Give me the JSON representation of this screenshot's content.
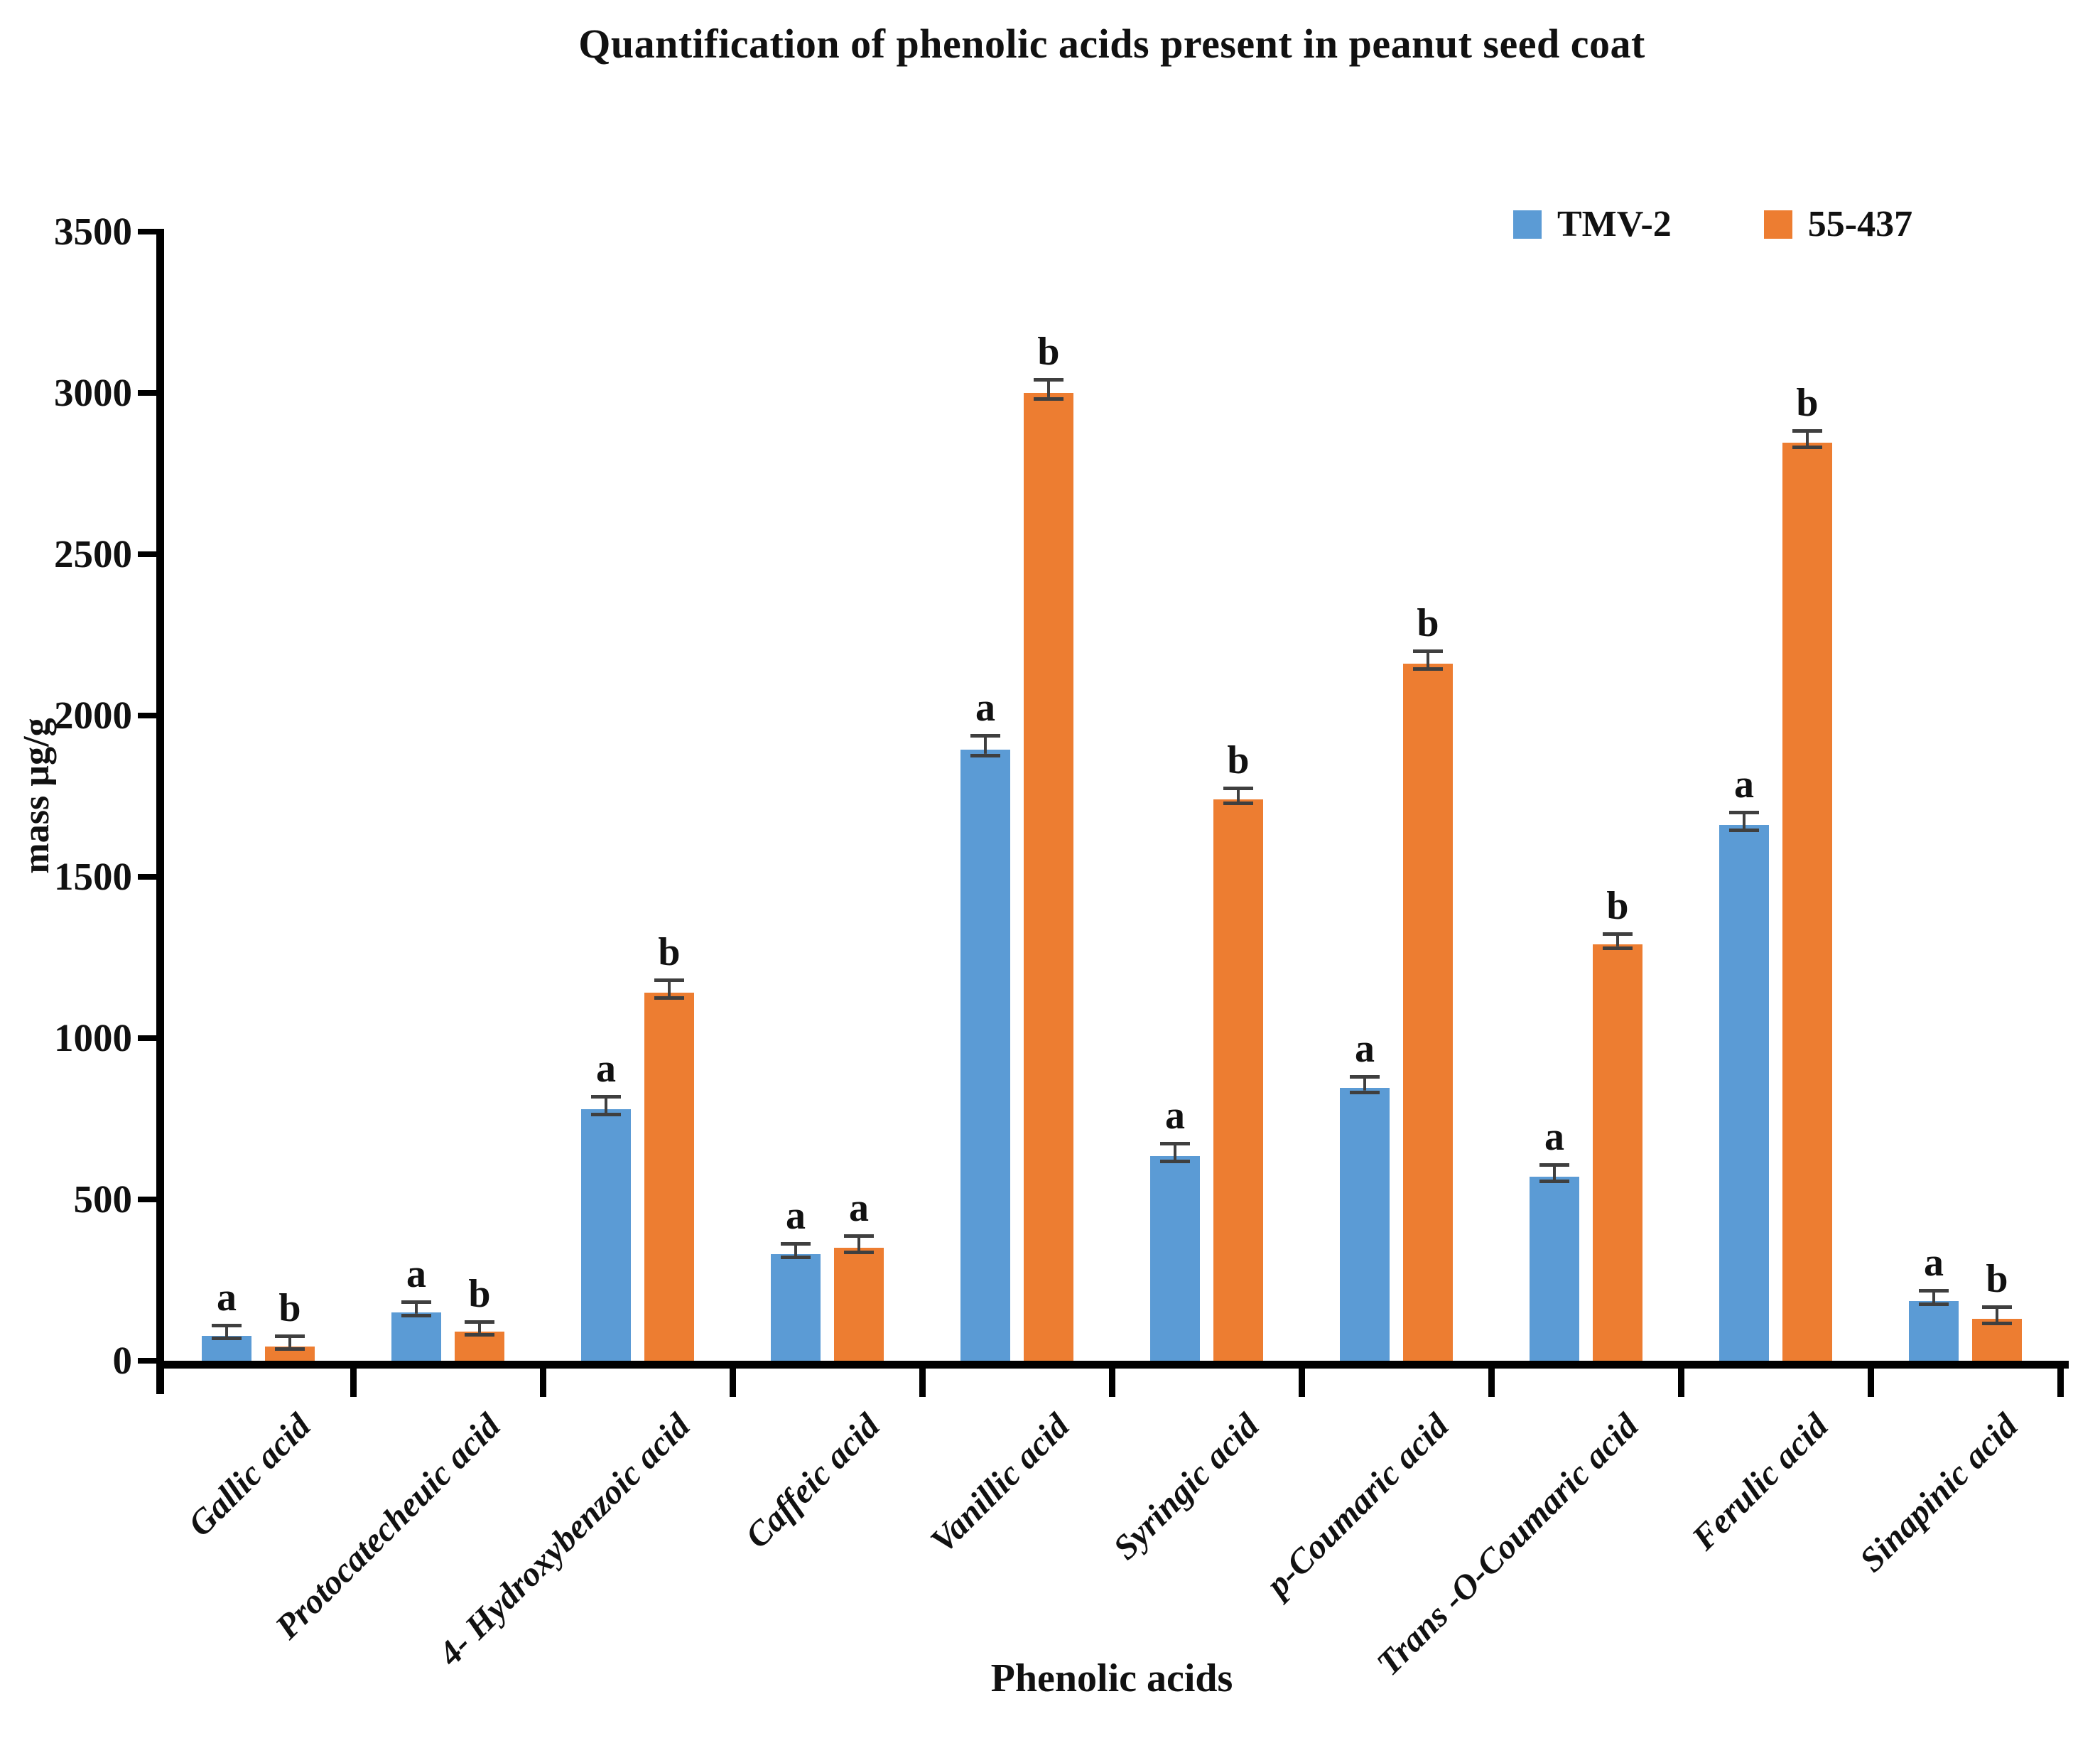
{
  "title": "Quantification of phenolic acids present in peanut seed coat",
  "legend": {
    "items": [
      {
        "label": "TMV-2",
        "color": "#5B9BD5"
      },
      {
        "label": "55-437",
        "color": "#ED7D31"
      }
    ]
  },
  "y_axis": {
    "title": "mass µg/g",
    "ticks": [
      3500,
      3000,
      2500,
      2000,
      1500,
      1000,
      500,
      0
    ]
  },
  "x_axis": {
    "title": "Phenolic acids"
  },
  "chart_data": {
    "type": "bar",
    "title": "Quantification of phenolic acids present in peanut seed coat",
    "xlabel": "Phenolic acids",
    "ylabel": "mass µg/g",
    "ylim": [
      0,
      3500
    ],
    "y_tick_step": 500,
    "grid": false,
    "legend_position": "top-right",
    "error_bars": true,
    "categories": [
      "Gallic acid",
      "Protocatecheuic acid",
      "4- Hydroxybenzoic acid",
      "Caffeic acid",
      "Vanillic acid",
      "Syringic acid",
      "p-Coumaric acid",
      "Trans -O-Coumaric acid",
      "Ferulic acid",
      "Sinapinic acid"
    ],
    "series": [
      {
        "name": "TMV-2",
        "color": "#5B9BD5",
        "values": [
          78,
          150,
          780,
          330,
          1895,
          635,
          845,
          570,
          1660,
          185
        ],
        "errors": [
          15,
          15,
          22,
          16,
          25,
          22,
          18,
          20,
          22,
          16
        ],
        "letters": [
          "a",
          "a",
          "a",
          "a",
          "a",
          "a",
          "a",
          "a",
          "a",
          "a"
        ]
      },
      {
        "name": "55-437",
        "color": "#ED7D31",
        "values": [
          45,
          90,
          1140,
          350,
          3000,
          1740,
          2160,
          1290,
          2845,
          130
        ],
        "errors": [
          14,
          14,
          22,
          20,
          24,
          18,
          22,
          16,
          20,
          20
        ],
        "letters": [
          "b",
          "b",
          "b",
          "a",
          "b",
          "b",
          "b",
          "b",
          "b",
          "b"
        ]
      }
    ]
  }
}
